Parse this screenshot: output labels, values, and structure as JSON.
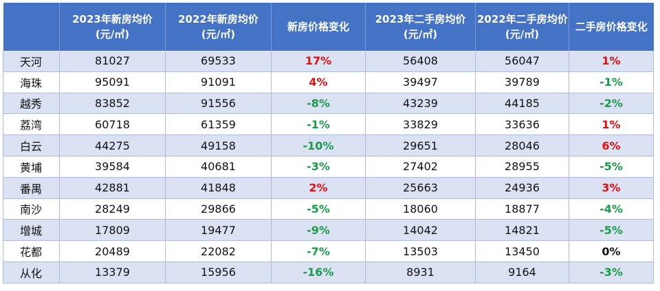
{
  "table": {
    "headers": [
      {
        "line1": "",
        "line2": ""
      },
      {
        "line1": "2023年新房均价",
        "line2": "(元/㎡)"
      },
      {
        "line1": "2022年新房均价",
        "line2": "(元/㎡)"
      },
      {
        "line1": "新房价格变化",
        "line2": ""
      },
      {
        "line1": "2023年二手房均价",
        "line2": "(元/㎡)"
      },
      {
        "line1": "2022年二手房均价",
        "line2": "(元/㎡)"
      },
      {
        "line1": "二手房价格变化",
        "line2": ""
      }
    ],
    "rows": [
      {
        "district": "天河",
        "new_2023": "81027",
        "new_2022": "69533",
        "new_change": "17%",
        "new_dir": "up",
        "used_2023": "56408",
        "used_2022": "56047",
        "used_change": "1%",
        "used_dir": "up"
      },
      {
        "district": "海珠",
        "new_2023": "95091",
        "new_2022": "91091",
        "new_change": "4%",
        "new_dir": "up",
        "used_2023": "39497",
        "used_2022": "39789",
        "used_change": "-1%",
        "used_dir": "down"
      },
      {
        "district": "越秀",
        "new_2023": "83852",
        "new_2022": "91556",
        "new_change": "-8%",
        "new_dir": "down",
        "used_2023": "43239",
        "used_2022": "44185",
        "used_change": "-2%",
        "used_dir": "down"
      },
      {
        "district": "荔湾",
        "new_2023": "60718",
        "new_2022": "61359",
        "new_change": "-1%",
        "new_dir": "down",
        "used_2023": "33829",
        "used_2022": "33636",
        "used_change": "1%",
        "used_dir": "up"
      },
      {
        "district": "白云",
        "new_2023": "44275",
        "new_2022": "49158",
        "new_change": "-10%",
        "new_dir": "down",
        "used_2023": "29651",
        "used_2022": "28046",
        "used_change": "6%",
        "used_dir": "up"
      },
      {
        "district": "黄埔",
        "new_2023": "39584",
        "new_2022": "40681",
        "new_change": "-3%",
        "new_dir": "down",
        "used_2023": "27402",
        "used_2022": "28955",
        "used_change": "-5%",
        "used_dir": "down"
      },
      {
        "district": "番禺",
        "new_2023": "42881",
        "new_2022": "41848",
        "new_change": "2%",
        "new_dir": "up",
        "used_2023": "25663",
        "used_2022": "24936",
        "used_change": "3%",
        "used_dir": "up"
      },
      {
        "district": "南沙",
        "new_2023": "28249",
        "new_2022": "29866",
        "new_change": "-5%",
        "new_dir": "down",
        "used_2023": "18060",
        "used_2022": "18877",
        "used_change": "-4%",
        "used_dir": "down"
      },
      {
        "district": "增城",
        "new_2023": "17809",
        "new_2022": "19477",
        "new_change": "-9%",
        "new_dir": "down",
        "used_2023": "14042",
        "used_2022": "14821",
        "used_change": "-5%",
        "used_dir": "down"
      },
      {
        "district": "花都",
        "new_2023": "20489",
        "new_2022": "22082",
        "new_change": "-7%",
        "new_dir": "down",
        "used_2023": "13503",
        "used_2022": "13450",
        "used_change": "0%",
        "used_dir": "flat"
      },
      {
        "district": "从化",
        "new_2023": "13379",
        "new_2022": "15956",
        "new_change": "-16%",
        "new_dir": "down",
        "used_2023": "8931",
        "used_2022": "9164",
        "used_change": "-3%",
        "used_dir": "down"
      }
    ]
  },
  "colors": {
    "header_bg": "#4472c4",
    "row_band": "#d9e1f2",
    "increase": "#e01010",
    "decrease": "#1a9a4a",
    "no_change": "#111111"
  }
}
